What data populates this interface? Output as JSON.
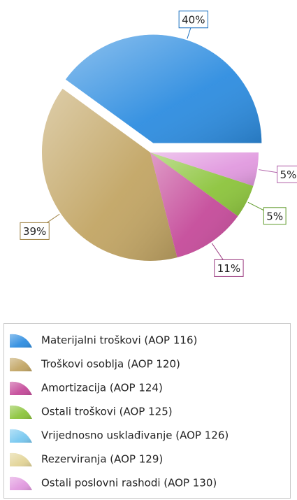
{
  "chart_data": {
    "type": "pie",
    "categories": [
      "Materijalni troškovi (AOP 116)",
      "Troškovi osoblja (AOP 120)",
      "Amortizacija (AOP 124)",
      "Ostali troškovi (AOP 125)",
      "Vrijednosno usklađivanje (AOP 126)",
      "Rezerviranja (AOP 129)",
      "Ostali poslovni rashodi (AOP 130)"
    ],
    "values": [
      40,
      39,
      11,
      5,
      0,
      0,
      5
    ],
    "value_labels": [
      "40%",
      "39%",
      "11%",
      "5%",
      null,
      null,
      "5%"
    ],
    "colors": [
      "#2e8de0",
      "#c2a564",
      "#c54b9a",
      "#8cc43c",
      "#78c8f0",
      "#e2d497",
      "#e199df"
    ],
    "label_colors": [
      "#1a6fbf",
      "#9c7d3c",
      "#9a3a80",
      "#5f9a2a",
      "#3a90c0",
      "#a8984a",
      "#b060a8"
    ],
    "exploded": 0,
    "legend": "bottom"
  }
}
